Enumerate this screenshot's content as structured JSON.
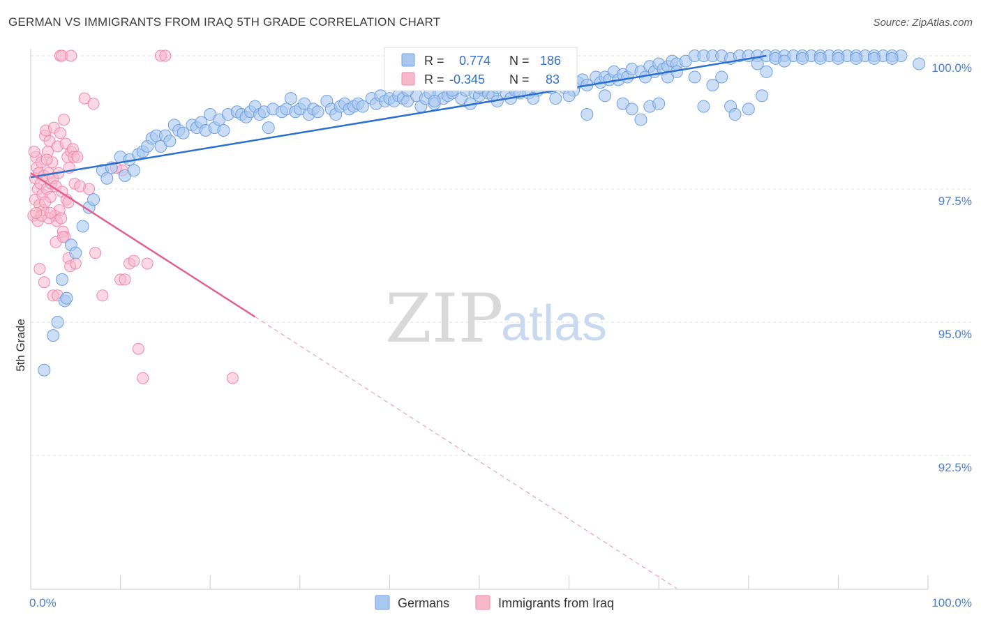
{
  "title": "GERMAN VS IMMIGRANTS FROM IRAQ 5TH GRADE CORRELATION CHART",
  "source": "Source: ZipAtlas.com",
  "colors": {
    "german": "#a8c8f0",
    "german_stroke": "#6f9fe0",
    "german_line": "#2a6fd0",
    "iraq": "#f7b8cc",
    "iraq_stroke": "#ee88aa",
    "iraq_line": "#e06090",
    "axis_label": "#4a7fd0"
  },
  "legend": {
    "german": {
      "r_label": "R =",
      "r_value": "0.774",
      "n_label": "N =",
      "n_value": "186"
    },
    "iraq": {
      "r_label": "R =",
      "r_value": "-0.345",
      "n_label": "N =",
      "n_value": "83"
    }
  },
  "bottom_legend": {
    "german": "Germans",
    "iraq": "Immigrants from Iraq"
  },
  "watermark": {
    "zip": "ZIP",
    "atlas": "atlas"
  },
  "chart_data": {
    "type": "scatter",
    "title": "GERMAN VS IMMIGRANTS FROM IRAQ 5TH GRADE CORRELATION CHART",
    "xlabel": "",
    "ylabel": "5th Grade",
    "xlim": [
      0,
      100
    ],
    "ylim": [
      90.0,
      100.2
    ],
    "x_ticks": [
      "0.0%",
      "100.0%"
    ],
    "y_ticks": [
      {
        "value": 100.0,
        "label": "100.0%"
      },
      {
        "value": 97.5,
        "label": "97.5%"
      },
      {
        "value": 95.0,
        "label": "95.0%"
      },
      {
        "value": 92.5,
        "label": "92.5%"
      }
    ],
    "grid": true,
    "series": [
      {
        "name": "Germans",
        "r": 0.774,
        "n": 186,
        "trend": {
          "x": [
            0,
            82
          ],
          "y": [
            97.72,
            100.0
          ]
        },
        "points": [
          [
            1.5,
            94.1
          ],
          [
            2.5,
            94.75
          ],
          [
            3,
            95.0
          ],
          [
            3.8,
            95.4
          ],
          [
            4,
            95.45
          ],
          [
            3.5,
            95.8
          ],
          [
            4.5,
            96.45
          ],
          [
            5,
            96.3
          ],
          [
            5.8,
            96.8
          ],
          [
            6.5,
            97.15
          ],
          [
            7,
            97.3
          ],
          [
            8,
            97.85
          ],
          [
            8.5,
            97.7
          ],
          [
            9,
            97.9
          ],
          [
            10,
            98.1
          ],
          [
            10.5,
            97.75
          ],
          [
            11,
            98.05
          ],
          [
            11.5,
            97.85
          ],
          [
            12,
            98.15
          ],
          [
            12.5,
            98.2
          ],
          [
            13,
            98.3
          ],
          [
            13.5,
            98.45
          ],
          [
            14,
            98.5
          ],
          [
            14.5,
            98.3
          ],
          [
            15,
            98.5
          ],
          [
            15.5,
            98.4
          ],
          [
            16,
            98.7
          ],
          [
            16.5,
            98.6
          ],
          [
            17,
            98.55
          ],
          [
            18,
            98.7
          ],
          [
            18.5,
            98.65
          ],
          [
            19,
            98.75
          ],
          [
            19.5,
            98.6
          ],
          [
            20,
            98.9
          ],
          [
            20.5,
            98.65
          ],
          [
            21,
            98.8
          ],
          [
            21.5,
            98.6
          ],
          [
            22,
            98.9
          ],
          [
            23,
            98.95
          ],
          [
            23.5,
            98.9
          ],
          [
            24,
            98.85
          ],
          [
            24.5,
            98.95
          ],
          [
            25,
            99.05
          ],
          [
            25.5,
            98.9
          ],
          [
            26,
            98.95
          ],
          [
            26.5,
            98.65
          ],
          [
            27,
            99.0
          ],
          [
            28,
            98.95
          ],
          [
            28.5,
            99.0
          ],
          [
            29,
            99.2
          ],
          [
            29.5,
            98.95
          ],
          [
            30,
            99.0
          ],
          [
            30.5,
            99.1
          ],
          [
            31,
            98.9
          ],
          [
            31.5,
            99.0
          ],
          [
            32,
            98.95
          ],
          [
            33,
            99.15
          ],
          [
            33.5,
            99.0
          ],
          [
            34,
            98.9
          ],
          [
            34.5,
            99.05
          ],
          [
            35,
            99.1
          ],
          [
            35.5,
            99.0
          ],
          [
            36,
            99.05
          ],
          [
            36.5,
            99.1
          ],
          [
            37,
            99.05
          ],
          [
            38,
            99.2
          ],
          [
            38.5,
            99.1
          ],
          [
            39,
            99.25
          ],
          [
            39.5,
            99.15
          ],
          [
            40,
            99.2
          ],
          [
            40.5,
            99.15
          ],
          [
            41,
            99.25
          ],
          [
            41.5,
            99.2
          ],
          [
            42,
            99.15
          ],
          [
            43,
            99.25
          ],
          [
            43.5,
            99.05
          ],
          [
            44,
            99.2
          ],
          [
            44.5,
            99.3
          ],
          [
            45,
            99.1
          ],
          [
            45.5,
            99.3
          ],
          [
            46,
            99.2
          ],
          [
            46.5,
            99.25
          ],
          [
            47,
            99.3
          ],
          [
            48,
            99.2
          ],
          [
            48.5,
            99.35
          ],
          [
            49,
            99.1
          ],
          [
            49.5,
            99.3
          ],
          [
            50,
            99.25
          ],
          [
            50.5,
            99.35
          ],
          [
            51,
            99.3
          ],
          [
            51.5,
            99.25
          ],
          [
            52,
            99.4
          ],
          [
            53,
            99.3
          ],
          [
            53.5,
            99.2
          ],
          [
            54,
            99.35
          ],
          [
            54.5,
            99.3
          ],
          [
            55,
            99.45
          ],
          [
            55.5,
            99.3
          ],
          [
            56,
            99.5
          ],
          [
            56.5,
            99.35
          ],
          [
            57,
            99.45
          ],
          [
            58,
            99.5
          ],
          [
            58.5,
            99.2
          ],
          [
            59,
            99.55
          ],
          [
            59.5,
            99.4
          ],
          [
            60,
            99.5
          ],
          [
            60.5,
            99.35
          ],
          [
            61,
            99.5
          ],
          [
            61.5,
            99.55
          ],
          [
            62,
            99.45
          ],
          [
            63,
            99.6
          ],
          [
            63.5,
            99.5
          ],
          [
            64,
            99.6
          ],
          [
            64.5,
            99.55
          ],
          [
            65,
            99.7
          ],
          [
            65.5,
            99.55
          ],
          [
            66,
            99.65
          ],
          [
            66.5,
            99.6
          ],
          [
            67,
            99.75
          ],
          [
            68,
            99.7
          ],
          [
            68.5,
            99.6
          ],
          [
            69,
            99.8
          ],
          [
            69.5,
            99.7
          ],
          [
            70,
            99.85
          ],
          [
            70.5,
            99.75
          ],
          [
            71,
            99.8
          ],
          [
            71.5,
            99.9
          ],
          [
            72,
            99.85
          ],
          [
            73,
            99.9
          ],
          [
            74,
            100.0
          ],
          [
            75,
            100.0
          ],
          [
            76,
            100.0
          ],
          [
            77,
            100.0
          ],
          [
            78,
            99.95
          ],
          [
            79,
            100.0
          ],
          [
            80,
            100.0
          ],
          [
            81,
            100.0
          ],
          [
            82,
            100.0
          ],
          [
            83,
            100.0
          ],
          [
            84,
            100.0
          ],
          [
            85,
            100.0
          ],
          [
            86,
            100.0
          ],
          [
            87,
            100.0
          ],
          [
            88,
            100.0
          ],
          [
            89,
            100.0
          ],
          [
            90,
            100.0
          ],
          [
            91,
            100.0
          ],
          [
            92,
            100.0
          ],
          [
            93,
            100.0
          ],
          [
            94,
            100.0
          ],
          [
            95,
            100.0
          ],
          [
            96,
            100.0
          ],
          [
            97,
            100.0
          ],
          [
            99,
            99.85
          ],
          [
            42,
            99.35
          ],
          [
            45,
            99.15
          ],
          [
            47,
            99.35
          ],
          [
            50,
            99.4
          ],
          [
            52,
            99.15
          ],
          [
            54,
            99.45
          ],
          [
            56,
            99.2
          ],
          [
            58,
            99.4
          ],
          [
            60,
            99.25
          ],
          [
            62,
            98.9
          ],
          [
            64,
            99.25
          ],
          [
            66,
            99.1
          ],
          [
            68,
            98.8
          ],
          [
            69,
            99.05
          ],
          [
            71,
            99.6
          ],
          [
            72,
            99.7
          ],
          [
            74,
            99.6
          ],
          [
            75,
            99.05
          ],
          [
            76,
            99.45
          ],
          [
            77,
            99.6
          ],
          [
            78,
            99.05
          ],
          [
            78.5,
            98.9
          ],
          [
            80,
            99.0
          ],
          [
            81,
            99.85
          ],
          [
            81.5,
            99.25
          ],
          [
            82,
            99.7
          ],
          [
            83,
            99.95
          ],
          [
            84,
            99.9
          ],
          [
            86,
            99.95
          ],
          [
            88,
            99.95
          ],
          [
            90,
            99.95
          ],
          [
            92,
            99.95
          ],
          [
            94,
            99.95
          ],
          [
            96,
            99.95
          ],
          [
            70,
            99.1
          ],
          [
            67,
            99.0
          ]
        ]
      },
      {
        "name": "Immigrants from Iraq",
        "r": -0.345,
        "n": 83,
        "trend": {
          "x": [
            0,
            25
          ],
          "y": [
            97.8,
            95.1
          ]
        },
        "trend_dashed": {
          "x": [
            25,
            72
          ],
          "y": [
            95.1,
            90.0
          ]
        },
        "points": [
          [
            0.3,
            97.0
          ],
          [
            0.5,
            97.3
          ],
          [
            0.5,
            97.7
          ],
          [
            0.6,
            98.1
          ],
          [
            0.7,
            97.9
          ],
          [
            0.8,
            97.5
          ],
          [
            0.9,
            97.8
          ],
          [
            1.0,
            97.2
          ],
          [
            1.1,
            97.6
          ],
          [
            1.2,
            98.0
          ],
          [
            1.3,
            97.4
          ],
          [
            1.4,
            97.1
          ],
          [
            1.5,
            97.75
          ],
          [
            1.6,
            98.5
          ],
          [
            1.7,
            98.6
          ],
          [
            1.8,
            97.5
          ],
          [
            1.9,
            98.2
          ],
          [
            2.0,
            97.8
          ],
          [
            2.1,
            98.4
          ],
          [
            2.2,
            97.35
          ],
          [
            2.3,
            97.6
          ],
          [
            2.4,
            98.0
          ],
          [
            2.5,
            97.7
          ],
          [
            2.6,
            98.65
          ],
          [
            2.7,
            97.0
          ],
          [
            2.8,
            97.55
          ],
          [
            2.9,
            96.9
          ],
          [
            3.0,
            98.3
          ],
          [
            3.1,
            97.8
          ],
          [
            3.2,
            97.1
          ],
          [
            3.3,
            98.55
          ],
          [
            3.4,
            96.95
          ],
          [
            3.5,
            97.45
          ],
          [
            3.6,
            96.7
          ],
          [
            3.7,
            98.8
          ],
          [
            3.8,
            96.6
          ],
          [
            3.9,
            98.35
          ],
          [
            4.0,
            97.3
          ],
          [
            4.1,
            98.1
          ],
          [
            4.2,
            96.2
          ],
          [
            4.3,
            97.9
          ],
          [
            4.4,
            96.05
          ],
          [
            4.5,
            98.2
          ],
          [
            4.7,
            98.25
          ],
          [
            4.9,
            97.6
          ],
          [
            5.0,
            96.1
          ],
          [
            5.5,
            97.55
          ],
          [
            6.0,
            99.2
          ],
          [
            6.5,
            97.5
          ],
          [
            7.0,
            99.1
          ],
          [
            7.2,
            96.3
          ],
          [
            8.0,
            95.5
          ],
          [
            10.0,
            95.8
          ],
          [
            10.5,
            95.8
          ],
          [
            11.0,
            96.1
          ],
          [
            11.5,
            96.15
          ],
          [
            12.0,
            94.5
          ],
          [
            12.5,
            93.95
          ],
          [
            13.0,
            96.1
          ],
          [
            14.5,
            100.0
          ],
          [
            15.0,
            100.0
          ],
          [
            22.5,
            93.95
          ],
          [
            3.3,
            100.0
          ],
          [
            3.5,
            100.0
          ],
          [
            4.5,
            100.0
          ],
          [
            1.0,
            96.0
          ],
          [
            1.5,
            95.75
          ],
          [
            2.5,
            95.5
          ],
          [
            3.0,
            95.5
          ],
          [
            2.0,
            96.95
          ],
          [
            0.8,
            96.9
          ],
          [
            1.2,
            97.0
          ],
          [
            1.6,
            97.25
          ],
          [
            2.2,
            97.05
          ],
          [
            2.8,
            96.5
          ],
          [
            3.6,
            96.6
          ],
          [
            4.2,
            97.25
          ],
          [
            4.8,
            98.1
          ],
          [
            5.2,
            98.1
          ],
          [
            10.2,
            97.85
          ],
          [
            9.5,
            97.9
          ],
          [
            0.4,
            98.2
          ],
          [
            0.6,
            97.05
          ],
          [
            1.8,
            98.05
          ]
        ]
      }
    ]
  }
}
